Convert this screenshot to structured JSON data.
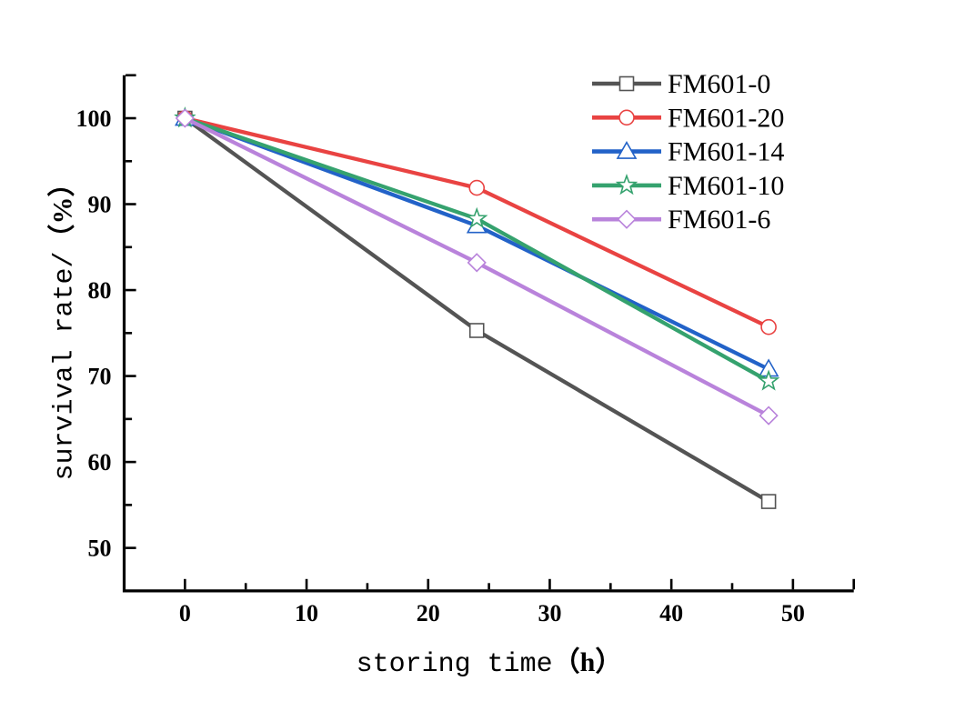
{
  "figure": {
    "background": "#ffffff",
    "axis_color": "#000000"
  },
  "chart_data": {
    "type": "line",
    "title": "",
    "xlabel": "storing time（h）",
    "xlabel_text": "storing time",
    "xlabel_unit": "（h）",
    "ylabel": "survival rate/（%）",
    "ylabel_text": "survival rate/",
    "ylabel_unit": "（%）",
    "x": [
      0,
      24,
      48
    ],
    "series": [
      {
        "name": "FM601-0",
        "color": "#545454",
        "marker": "square",
        "values": [
          100,
          75.3,
          55.4
        ]
      },
      {
        "name": "FM601-20",
        "color": "#E94342",
        "marker": "circle",
        "values": [
          100,
          91.9,
          75.7
        ]
      },
      {
        "name": "FM601-14",
        "color": "#2262C8",
        "marker": "triangle",
        "values": [
          100,
          87.5,
          70.8
        ]
      },
      {
        "name": "FM601-10",
        "color": "#35A26E",
        "marker": "star",
        "values": [
          100,
          88.3,
          69.4
        ]
      },
      {
        "name": "FM601-6",
        "color": "#B983DB",
        "marker": "diamond",
        "values": [
          100,
          83.2,
          65.4
        ]
      }
    ],
    "xlim": [
      -5,
      55
    ],
    "ylim": [
      45,
      105
    ],
    "x_major_ticks": [
      0,
      10,
      20,
      30,
      40,
      50
    ],
    "x_minor_ticks": [
      5,
      15,
      25,
      35,
      45
    ],
    "y_major_ticks": [
      50,
      60,
      70,
      80,
      90,
      100
    ],
    "y_minor_ticks": [
      55,
      65,
      75,
      85,
      95
    ],
    "grid": false,
    "legend_position": "top-right-inside",
    "marker_fill": "#ffffff"
  }
}
